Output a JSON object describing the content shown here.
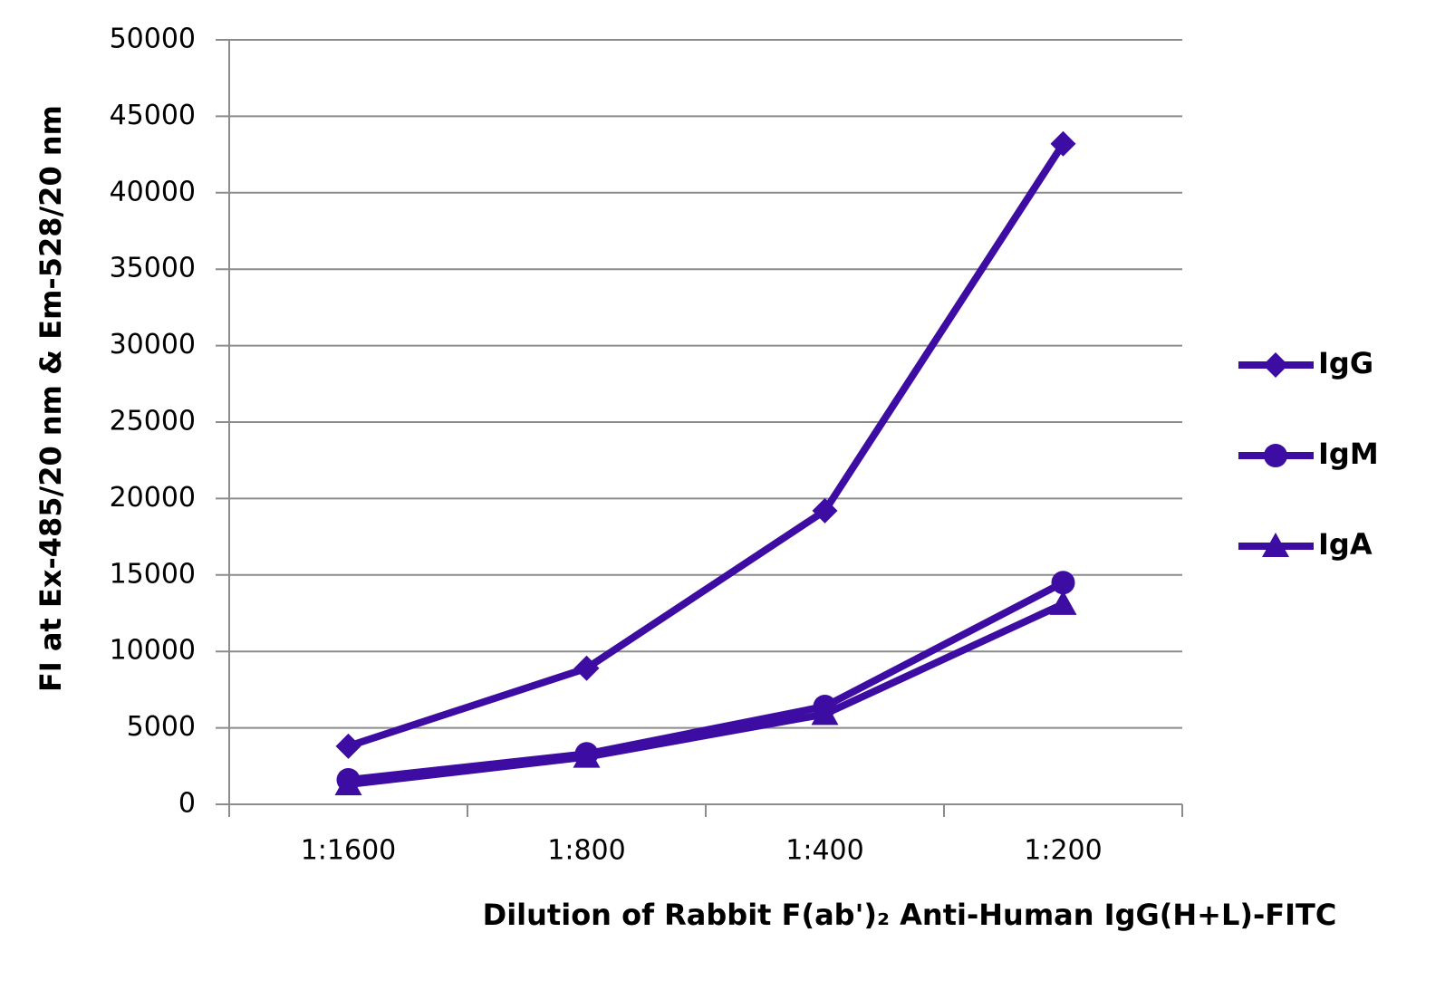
{
  "chart_data": {
    "type": "line",
    "x_label": "Dilution of Rabbit F(ab')₂ Anti-Human IgG(H+L)-FITC",
    "y_label": "FI at Ex-485/20 nm & Em-528/20 nm",
    "categories": [
      "1:1600",
      "1:800",
      "1:400",
      "1:200"
    ],
    "series": [
      {
        "name": "IgG",
        "color": "#3d0ca3",
        "marker": "diamond",
        "values": [
          3800,
          8900,
          19200,
          43200
        ]
      },
      {
        "name": "IgM",
        "color": "#3d0ca3",
        "marker": "circle",
        "values": [
          1600,
          3300,
          6400,
          14500
        ]
      },
      {
        "name": "IgA",
        "color": "#3d0ca3",
        "marker": "triangle",
        "values": [
          1300,
          3100,
          5900,
          13100
        ]
      }
    ],
    "ylim": [
      0,
      50000
    ],
    "yticks": [
      0,
      5000,
      10000,
      15000,
      20000,
      25000,
      30000,
      35000,
      40000,
      45000,
      50000
    ],
    "grid": true,
    "legend": "right"
  }
}
